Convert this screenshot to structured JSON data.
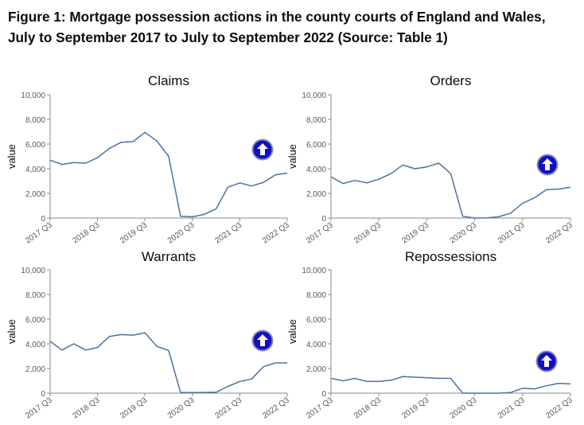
{
  "figure": {
    "title_line1": "Figure 1: Mortgage possession actions in the county courts of England and Wales,",
    "title_line2": "July to September 2017 to July to September 2022 (Source: Table 1)"
  },
  "colors": {
    "line": "#4a72a4",
    "axis": "#888888",
    "text": "#0b0c0c",
    "badge_fill": "#1010c8",
    "badge_ring": "#8a8aa8",
    "badge_arrow": "#ffffff"
  },
  "chart_data": [
    {
      "type": "line",
      "title": "Claims",
      "ylabel": "value",
      "ylim": [
        0,
        10000
      ],
      "y_ticks": [
        "0",
        "2,000",
        "4,000",
        "6,000",
        "8,000",
        "10,000"
      ],
      "x_tick_labels": [
        "2017 Q3",
        "2018 Q3",
        "2019 Q3",
        "2020 Q3",
        "2021 Q3",
        "2022 Q3"
      ],
      "x": [
        "2017 Q3",
        "2017 Q4",
        "2018 Q1",
        "2018 Q2",
        "2018 Q3",
        "2018 Q4",
        "2019 Q1",
        "2019 Q2",
        "2019 Q3",
        "2019 Q4",
        "2020 Q1",
        "2020 Q2",
        "2020 Q3",
        "2020 Q4",
        "2021 Q1",
        "2021 Q2",
        "2021 Q3",
        "2021 Q4",
        "2022 Q1",
        "2022 Q2",
        "2022 Q3"
      ],
      "values": [
        4700,
        4350,
        4500,
        4450,
        4900,
        5650,
        6150,
        6200,
        6950,
        6250,
        5000,
        150,
        100,
        300,
        750,
        2500,
        2850,
        2600,
        2900,
        3500,
        3650
      ],
      "icon": "up-arrow-icon"
    },
    {
      "type": "line",
      "title": "Orders",
      "ylabel": "value",
      "ylim": [
        0,
        10000
      ],
      "y_ticks": [
        "0",
        "2,000",
        "4,000",
        "6,000",
        "8,000",
        "10,000"
      ],
      "x_tick_labels": [
        "2017 Q3",
        "2018 Q3",
        "2019 Q3",
        "2020 Q3",
        "2021 Q3",
        "2022 Q3"
      ],
      "x": [
        "2017 Q3",
        "2017 Q4",
        "2018 Q1",
        "2018 Q2",
        "2018 Q3",
        "2018 Q4",
        "2019 Q1",
        "2019 Q2",
        "2019 Q3",
        "2019 Q4",
        "2020 Q1",
        "2020 Q2",
        "2020 Q3",
        "2020 Q4",
        "2021 Q1",
        "2021 Q2",
        "2021 Q3",
        "2021 Q4",
        "2022 Q1",
        "2022 Q2",
        "2022 Q3"
      ],
      "values": [
        3350,
        2800,
        3050,
        2850,
        3150,
        3600,
        4300,
        4000,
        4150,
        4450,
        3600,
        150,
        0,
        20,
        100,
        400,
        1200,
        1650,
        2300,
        2350,
        2500
      ],
      "icon": "up-arrow-icon"
    },
    {
      "type": "line",
      "title": "Warrants",
      "ylabel": "value",
      "ylim": [
        0,
        10000
      ],
      "y_ticks": [
        "0",
        "2,000",
        "4,000",
        "6,000",
        "8,000",
        "10,000"
      ],
      "x_tick_labels": [
        "2017 Q3",
        "2018 Q3",
        "2019 Q3",
        "2020 Q3",
        "2021 Q3",
        "2022 Q3"
      ],
      "x": [
        "2017 Q3",
        "2017 Q4",
        "2018 Q1",
        "2018 Q2",
        "2018 Q3",
        "2018 Q4",
        "2019 Q1",
        "2019 Q2",
        "2019 Q3",
        "2019 Q4",
        "2020 Q1",
        "2020 Q2",
        "2020 Q3",
        "2020 Q4",
        "2021 Q1",
        "2021 Q2",
        "2021 Q3",
        "2021 Q4",
        "2022 Q1",
        "2022 Q2",
        "2022 Q3"
      ],
      "values": [
        4200,
        3500,
        4000,
        3500,
        3700,
        4600,
        4750,
        4700,
        4900,
        3800,
        3450,
        50,
        50,
        60,
        80,
        550,
        950,
        1150,
        2150,
        2450,
        2450
      ],
      "icon": "up-arrow-icon"
    },
    {
      "type": "line",
      "title": "Repossessions",
      "ylabel": "value",
      "ylim": [
        0,
        10000
      ],
      "y_ticks": [
        "0",
        "2,000",
        "4,000",
        "6,000",
        "8,000",
        "10,000"
      ],
      "x_tick_labels": [
        "2017 Q3",
        "2018 Q3",
        "2019 Q3",
        "2020 Q3",
        "2021 Q3",
        "2022 Q3"
      ],
      "x": [
        "2017 Q3",
        "2017 Q4",
        "2018 Q1",
        "2018 Q2",
        "2018 Q3",
        "2018 Q4",
        "2019 Q1",
        "2019 Q2",
        "2019 Q3",
        "2019 Q4",
        "2020 Q1",
        "2020 Q2",
        "2020 Q3",
        "2020 Q4",
        "2021 Q1",
        "2021 Q2",
        "2021 Q3",
        "2021 Q4",
        "2022 Q1",
        "2022 Q2",
        "2022 Q3"
      ],
      "values": [
        1200,
        1000,
        1200,
        950,
        950,
        1050,
        1350,
        1300,
        1250,
        1200,
        1200,
        0,
        0,
        0,
        0,
        50,
        400,
        350,
        600,
        800,
        750
      ],
      "icon": "up-arrow-icon"
    }
  ]
}
